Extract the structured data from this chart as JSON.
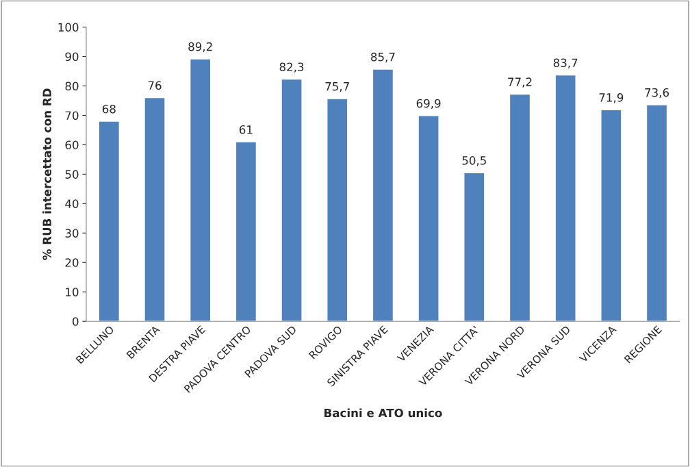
{
  "chart_data": {
    "type": "bar",
    "categories": [
      "BELLUNO",
      "BRENTA",
      "DESTRA PIAVE",
      "PADOVA CENTRO",
      "PADOVA SUD",
      "ROVIGO",
      "SINISTRA PIAVE",
      "VENEZIA",
      "VERONA CITTA'",
      "VERONA NORD",
      "VERONA SUD",
      "VICENZA",
      "REGIONE"
    ],
    "values": [
      68,
      76,
      89.2,
      61,
      82.3,
      75.7,
      85.7,
      69.9,
      50.5,
      77.2,
      83.7,
      71.9,
      73.6
    ],
    "value_labels": [
      "68",
      "76",
      "89,2",
      "61",
      "82,3",
      "75,7",
      "85,7",
      "69,9",
      "50,5",
      "77,2",
      "83,7",
      "71,9",
      "73,6"
    ],
    "color": "#4f81bd",
    "xlabel": "Bacini e ATO unico",
    "ylabel": "% RUB intercettato con RD",
    "ylim": [
      0,
      100
    ],
    "yticks": [
      0,
      10,
      20,
      30,
      40,
      50,
      60,
      70,
      80,
      90,
      100
    ],
    "grid": false
  }
}
